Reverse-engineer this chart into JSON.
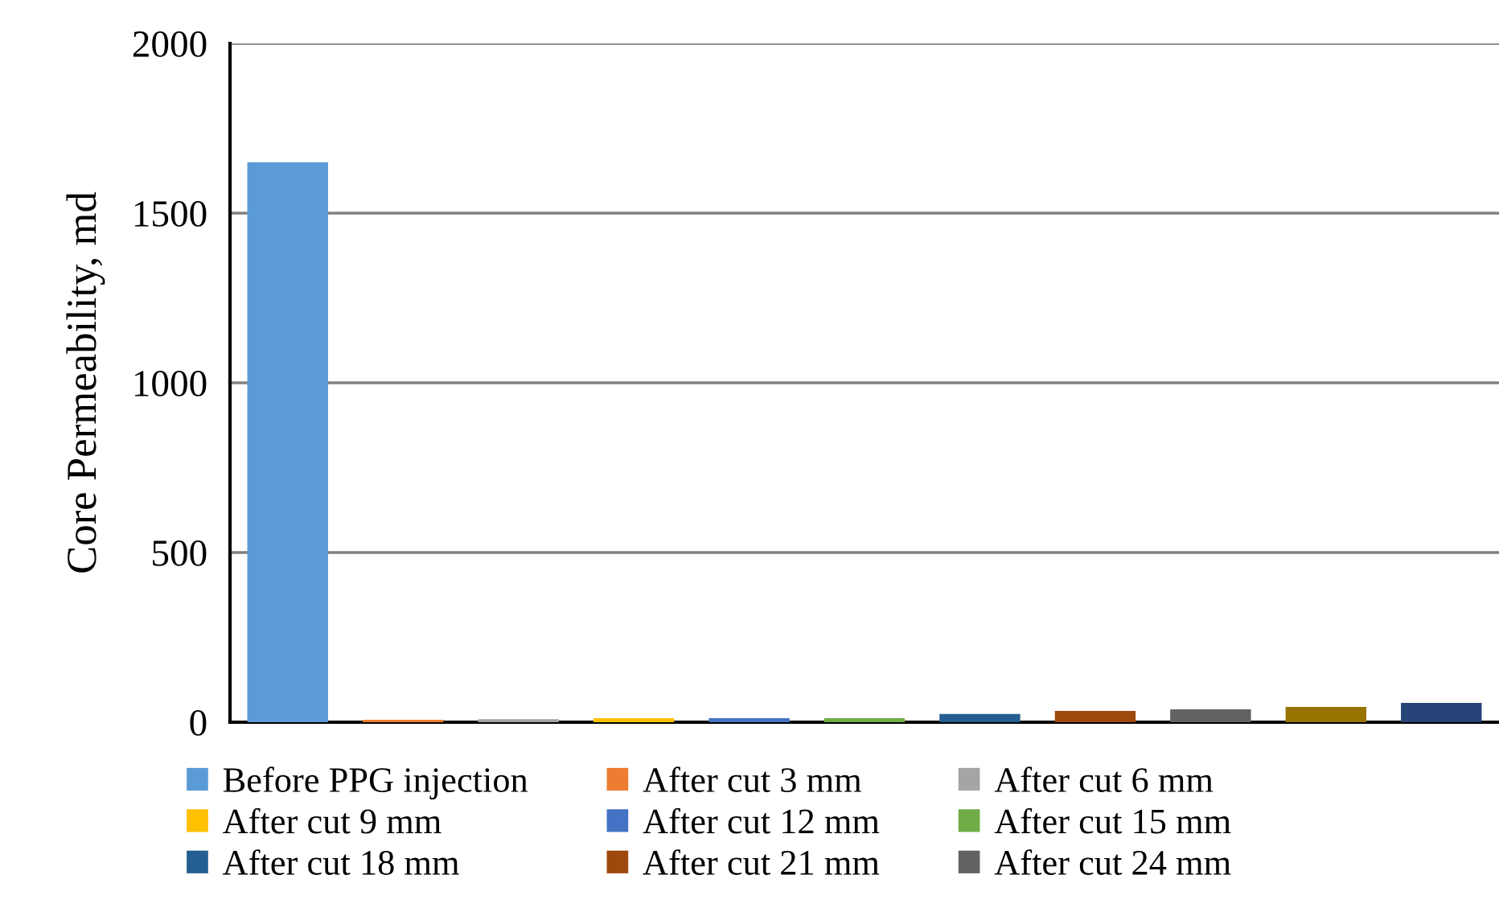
{
  "chart_data": {
    "type": "bar",
    "ylabel": "Core Permeability, md",
    "categories": [
      null,
      null,
      null,
      null,
      null,
      null,
      null,
      null,
      null,
      null,
      null
    ],
    "series": [
      {
        "name": "Before PPG injection",
        "color": "#5b9bd5",
        "values": [
          1650,
          null,
          null,
          null,
          null,
          null,
          null,
          null,
          null,
          null,
          null
        ]
      },
      {
        "name": "After cut 3 mm",
        "color": "#ed7d31",
        "values": [
          null,
          7,
          null,
          null,
          null,
          null,
          null,
          null,
          null,
          null,
          null
        ]
      },
      {
        "name": "After cut 6 mm",
        "color": "#a5a5a5",
        "values": [
          null,
          null,
          9,
          null,
          null,
          null,
          null,
          null,
          null,
          null,
          null
        ]
      },
      {
        "name": "After cut 9 mm",
        "color": "#ffc000",
        "values": [
          null,
          null,
          null,
          12,
          null,
          null,
          null,
          null,
          null,
          null,
          null
        ]
      },
      {
        "name": "After cut 12 mm",
        "color": "#4472c4",
        "values": [
          null,
          null,
          null,
          null,
          12,
          null,
          null,
          null,
          null,
          null,
          null
        ]
      },
      {
        "name": "After cut 15 mm",
        "color": "#70ad47",
        "values": [
          null,
          null,
          null,
          null,
          null,
          12,
          null,
          null,
          null,
          null,
          null
        ]
      },
      {
        "name": "After cut 18 mm",
        "color": "#255e91",
        "values": [
          null,
          null,
          null,
          null,
          null,
          null,
          24,
          null,
          null,
          null,
          null
        ]
      },
      {
        "name": "After cut 21 mm",
        "color": "#9e480e",
        "values": [
          null,
          null,
          null,
          null,
          null,
          null,
          null,
          33,
          null,
          null,
          null
        ]
      },
      {
        "name": "After cut 24 mm",
        "color": "#636363",
        "values": [
          null,
          null,
          null,
          null,
          null,
          null,
          null,
          null,
          38,
          null,
          null
        ]
      },
      {
        "color": "#997300",
        "values": [
          null,
          null,
          null,
          null,
          null,
          null,
          null,
          null,
          null,
          45,
          null
        ]
      },
      {
        "color": "#264478",
        "values": [
          null,
          null,
          null,
          null,
          null,
          null,
          null,
          null,
          null,
          null,
          57
        ]
      }
    ],
    "ylim": [
      0,
      2000
    ],
    "yticks": [
      0,
      500,
      1000,
      1500,
      2000
    ],
    "grid": "y",
    "legend": "bottom"
  }
}
